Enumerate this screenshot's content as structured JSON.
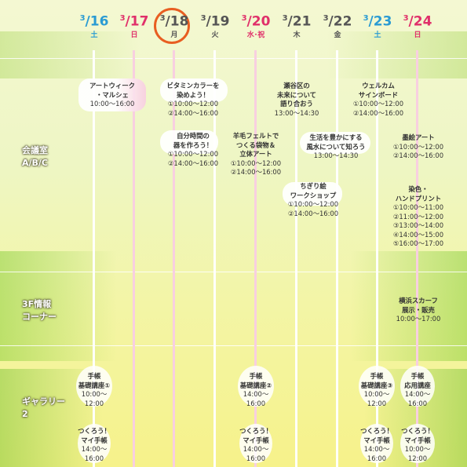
{
  "days": [
    {
      "date": "3/16",
      "md_m": "3",
      "md_d": "16",
      "dow": "土",
      "type": "sat"
    },
    {
      "date": "3/17",
      "md_m": "3",
      "md_d": "17",
      "dow": "日",
      "type": "sun"
    },
    {
      "date": "3/18",
      "md_m": "3",
      "md_d": "18",
      "dow": "月",
      "type": "today"
    },
    {
      "date": "3/19",
      "md_m": "3",
      "md_d": "19",
      "dow": "火",
      "type": "weekday"
    },
    {
      "date": "3/20",
      "md_m": "3",
      "md_d": "20",
      "dow": "水･祝",
      "type": "holiday"
    },
    {
      "date": "3/21",
      "md_m": "3",
      "md_d": "21",
      "dow": "木",
      "type": "weekday"
    },
    {
      "date": "3/22",
      "md_m": "3",
      "md_d": "22",
      "dow": "金",
      "type": "weekday"
    },
    {
      "date": "3/23",
      "md_m": "3",
      "md_d": "23",
      "dow": "土",
      "type": "sat"
    },
    {
      "date": "3/24",
      "md_m": "3",
      "md_d": "24",
      "dow": "日",
      "type": "sun"
    }
  ],
  "rooms": {
    "conference": [
      "会議室",
      "A/B/C"
    ],
    "info": [
      "3F情報",
      "コーナー"
    ],
    "gallery": [
      "ギャラリー",
      "2"
    ]
  },
  "events": {
    "e1": {
      "title": [
        "アートウィーク",
        "・マルシェ"
      ],
      "times": [
        "10:00～16:00"
      ]
    },
    "e2": {
      "title": [
        "ビタミンカラーを",
        "染めよう！"
      ],
      "times": [
        "①10:00～12:00",
        "②14:00～16:00"
      ]
    },
    "e3": {
      "title": [
        "自分時間の",
        "器を作ろう！"
      ],
      "times": [
        "①10:00～12:00",
        "②14:00～16:00"
      ]
    },
    "e4": {
      "title": [
        "羊毛フェルトで",
        "つくる袋物＆",
        "立体アート"
      ],
      "times": [
        "①10:00～12:00",
        "②14:00～16:00"
      ]
    },
    "e5": {
      "title": [
        "瀬谷区の",
        "未来について",
        "語り合おう"
      ],
      "times": [
        "13:00～14:30"
      ]
    },
    "e6": {
      "title": [
        "ちぎり絵",
        "ワークショップ"
      ],
      "times": [
        "①10:00～12:00",
        "②14:00～16:00"
      ]
    },
    "e7": {
      "title": [
        "生活を豊かにする",
        "風水について知ろう"
      ],
      "times": [
        "13:00～14:30"
      ]
    },
    "e8": {
      "title": [
        "ウェルカム",
        "サインボード"
      ],
      "times": [
        "①10:00～12:00",
        "②14:00～16:00"
      ]
    },
    "e9": {
      "title": [
        "墨絵アート"
      ],
      "times": [
        "①10:00～12:00",
        "②14:00～16:00"
      ]
    },
    "e10": {
      "title": [
        "染色・",
        "ハンドプリント"
      ],
      "times": [
        "①10:00～11:00",
        "②11:00～12:00",
        "③13:00～14:00",
        "④14:00～15:00",
        "⑤16:00～17:00"
      ]
    },
    "e11": {
      "title": [
        "横浜スカーフ",
        "展示・販売"
      ],
      "times": [
        "10:00～17:00"
      ]
    },
    "e12": {
      "title": [
        "手帳",
        "基礎講座①"
      ],
      "times": [
        "10:00～",
        "12:00"
      ]
    },
    "e13": {
      "title": [
        "手帳",
        "基礎講座②"
      ],
      "times": [
        "14:00～",
        "16:00"
      ]
    },
    "e14": {
      "title": [
        "手帳",
        "基礎講座③"
      ],
      "times": [
        "10:00～",
        "12:00"
      ]
    },
    "e15": {
      "title": [
        "手帳",
        "応用講座"
      ],
      "times": [
        "14:00～",
        "16:00"
      ]
    },
    "e16": {
      "title": [
        "つくろう！",
        "マイ手帳"
      ],
      "times": [
        "14:00～",
        "16:00"
      ]
    },
    "e17": {
      "title": [
        "つくろう！",
        "マイ手帳"
      ],
      "times": [
        "14:00～",
        "16:00"
      ]
    },
    "e18": {
      "title": [
        "つくろう！",
        "マイ手帳"
      ],
      "times": [
        "14:00～",
        "16:00"
      ]
    },
    "e19": {
      "title": [
        "つくろう！",
        "マイ手帳"
      ],
      "times": [
        "10:00～",
        "12:00"
      ]
    }
  },
  "colors": {
    "saturday": "#2a9bd3",
    "sunday_holiday": "#e0306a",
    "today_circle": "#e85e21"
  }
}
